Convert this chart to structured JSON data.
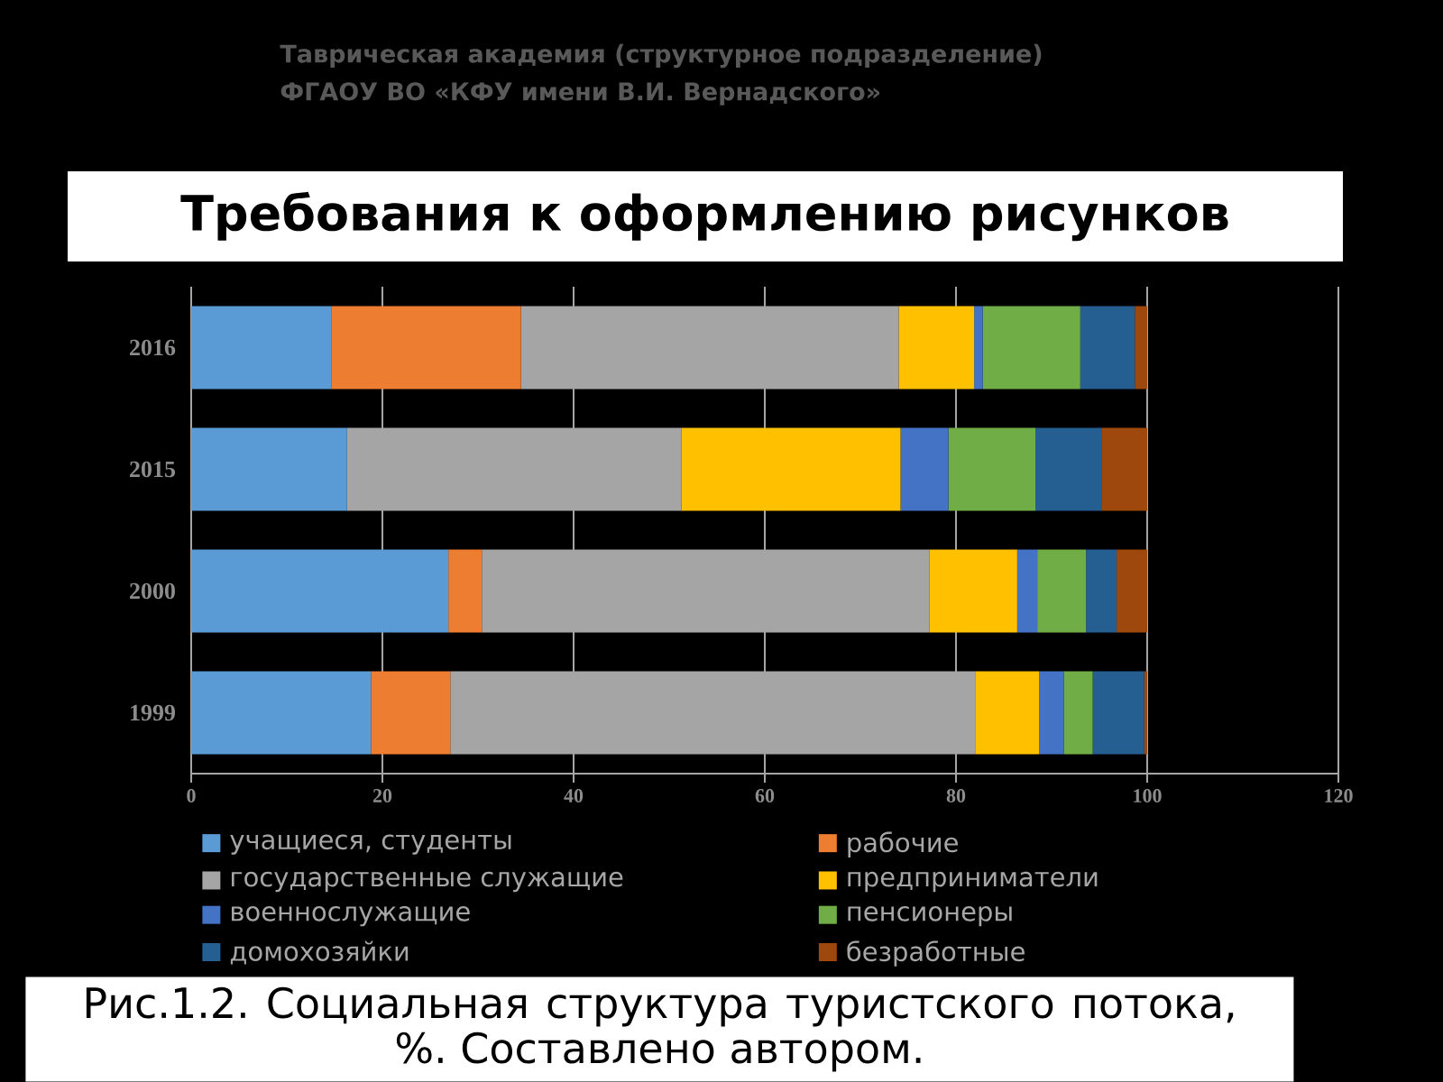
{
  "chart_data": {
    "type": "bar",
    "orientation": "horizontal",
    "stacked": true,
    "title": "Требования к оформлению рисунков",
    "annotations": [
      "Таврическая академия (структурное подразделение)",
      "ФГАОУ ВО «КФУ имени В.И. Вернадского»",
      "Рис.1.2. Социальная структура туристского потока, %. Составлено автором."
    ],
    "categories": [
      "2016",
      "2015",
      "2000",
      "1999"
    ],
    "series": [
      {
        "name": "учащиеся, студенты",
        "color": "#5b9bd5",
        "values": [
          14.7,
          16.3,
          26.9,
          18.8
        ]
      },
      {
        "name": "рабочие",
        "color": "#ed7d31",
        "values": [
          19.8,
          null,
          3.5,
          8.3
        ]
      },
      {
        "name": "государственные служащие",
        "color": "#a5a5a5",
        "values": [
          39.5,
          35.0,
          46.8,
          54.9
        ]
      },
      {
        "name": "предприниматели",
        "color": "#ffc000",
        "values": [
          7.9,
          22.9,
          9.2,
          6.7
        ]
      },
      {
        "name": "военнослужащие",
        "color": "#4472c4",
        "values": [
          0.9,
          5.0,
          2.1,
          2.6
        ]
      },
      {
        "name": "пенсионеры",
        "color": "#70ad47",
        "values": [
          10.2,
          9.1,
          5.1,
          3.0
        ]
      },
      {
        "name": "домохозяйки",
        "color": "#255e91",
        "values": [
          5.7,
          6.9,
          3.2,
          5.4
        ]
      },
      {
        "name": "безработные",
        "color": "#9e480e",
        "values": [
          1.3,
          4.8,
          3.2,
          0.3
        ]
      }
    ],
    "xlim": [
      0,
      120
    ],
    "xticks": [
      0,
      20,
      40,
      60,
      80,
      100,
      120
    ],
    "grid": "x",
    "legend": "bottom"
  }
}
